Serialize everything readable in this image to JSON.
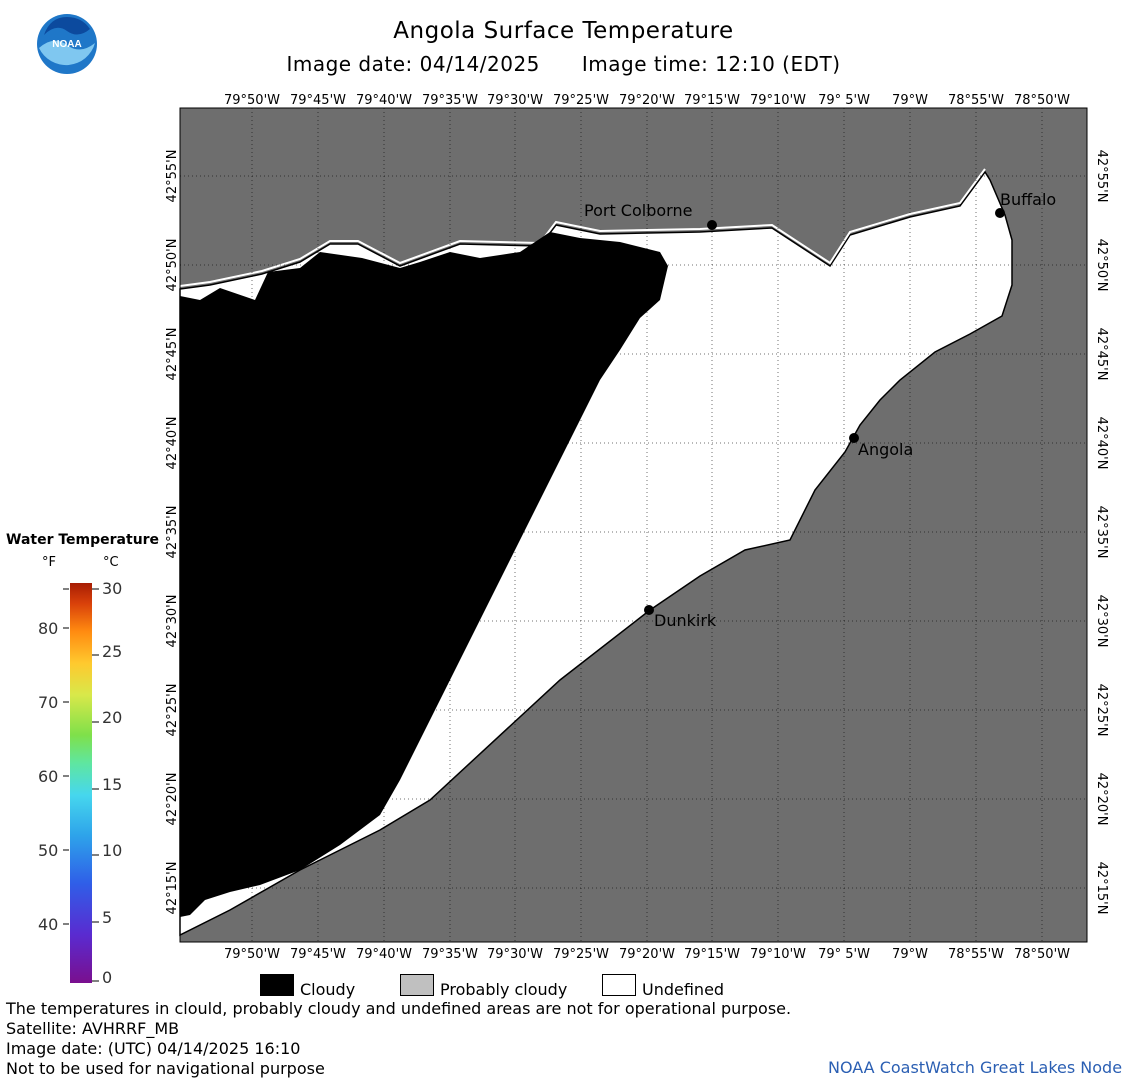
{
  "header": {
    "title": "Angola Surface Temperature",
    "image_date": "Image date: 04/14/2025",
    "image_time": "Image time: 12:10 (EDT)",
    "logo_text": "NOAA"
  },
  "map": {
    "lon_labels": [
      "79°50'W",
      "79°45'W",
      "79°40'W",
      "79°35'W",
      "79°30'W",
      "79°25'W",
      "79°20'W",
      "79°15'W",
      "79°10'W",
      "79° 5'W",
      "79°W",
      "78°55'W",
      "78°50'W"
    ],
    "lat_labels": [
      "42°55'N",
      "42°50'N",
      "42°45'N",
      "42°40'N",
      "42°35'N",
      "42°30'N",
      "42°25'N",
      "42°20'N",
      "42°15'N"
    ],
    "cities": [
      {
        "name": "Port Colborne",
        "lon": -79.25,
        "lat": 42.87
      },
      {
        "name": "Buffalo",
        "lon": -78.88,
        "lat": 42.88
      },
      {
        "name": "Angola",
        "lon": -79.08,
        "lat": 42.67
      },
      {
        "name": "Dunkirk",
        "lon": -79.33,
        "lat": 42.5
      }
    ],
    "colors": {
      "land": "#6e6e6e",
      "water_undefined": "#ffffff",
      "cloudy": "#000000",
      "grid": "#444444"
    }
  },
  "legend": {
    "title": "Water Temperature",
    "unit_f": "°F",
    "unit_c": "°C",
    "f_labels": [
      "80",
      "70",
      "60",
      "50",
      "40"
    ],
    "c_labels": [
      "30",
      "25",
      "20",
      "15",
      "10",
      "5",
      "0"
    ]
  },
  "key": {
    "cloudy": "Cloudy",
    "probably_cloudy": "Probably cloudy",
    "undefined": "Undefined"
  },
  "footer": {
    "line1": "The temperatures in clould, probably cloudy and undefined areas are not for operational purpose.",
    "line2": "Satellite: AVHRRF_MB",
    "line3": "Image date: (UTC) 04/14/2025  16:10",
    "line4": "Not to be used for navigational purpose",
    "credit": "NOAA CoastWatch Great Lakes Node"
  }
}
